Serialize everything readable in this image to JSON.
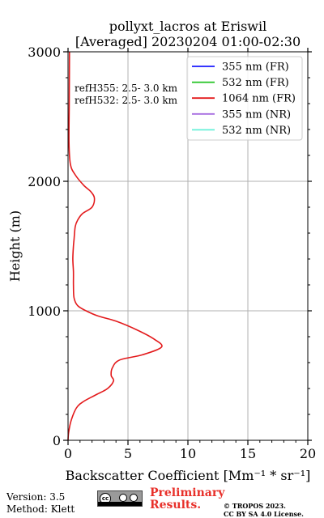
{
  "chart_data": {
    "type": "line",
    "title": [
      "pollyxt_lacros at Eriswil",
      "[Averaged] 20230204 01:00-02:30"
    ],
    "xlabel": "Backscatter Coefficient [Mm⁻¹ * sr⁻¹]",
    "ylabel": "Height (m)",
    "xlim": [
      0,
      20
    ],
    "ylim": [
      0,
      3000
    ],
    "xticks": [
      0,
      5,
      10,
      15,
      20
    ],
    "xtick_labels": [
      "0",
      "5",
      "10",
      "15",
      "20"
    ],
    "yticks": [
      0,
      1000,
      2000,
      3000
    ],
    "ytick_labels": [
      "0",
      "1000",
      "2000",
      "3000"
    ],
    "grid": true,
    "legend_position": "top-right",
    "legend": [
      {
        "name": "355 nm (FR)",
        "color": "#1a1aff"
      },
      {
        "name": "532 nm (FR)",
        "color": "#22c322"
      },
      {
        "name": "1064 nm (FR)",
        "color": "#e31a1c"
      },
      {
        "name": "355 nm (NR)",
        "color": "#a66be0"
      },
      {
        "name": "532 nm (NR)",
        "color": "#66f0d8"
      }
    ],
    "annotations": [
      "refH355:  2.5- 3.0 km",
      "refH532:  2.5- 3.0 km"
    ],
    "series": [
      {
        "name": "1064 nm (FR)",
        "color": "#e31a1c",
        "x": [
          0.0,
          0.05,
          0.25,
          0.7,
          1.3,
          2.3,
          3.3,
          3.8,
          3.6,
          3.7,
          4.3,
          6.2,
          7.8,
          7.2,
          5.8,
          4.0,
          2.5,
          1.5,
          0.8,
          0.5,
          0.45,
          0.45,
          0.4,
          0.45,
          0.5,
          0.6,
          0.8,
          1.2,
          2.0,
          2.2,
          1.9,
          1.3,
          0.6,
          0.2,
          0.08,
          0.1,
          0.12
        ],
        "y": [
          0,
          60,
          150,
          250,
          300,
          350,
          400,
          460,
          500,
          560,
          620,
          660,
          720,
          780,
          850,
          920,
          960,
          1000,
          1040,
          1100,
          1200,
          1300,
          1400,
          1500,
          1550,
          1650,
          1700,
          1750,
          1800,
          1870,
          1920,
          1970,
          2050,
          2130,
          2300,
          2600,
          3000
        ]
      }
    ]
  },
  "footer": {
    "version": "Version: 3.5",
    "method": "Method: Klett",
    "preliminary_1": "Preliminary",
    "preliminary_2": "Results.",
    "tropos_1": "© TROPOS 2023.",
    "tropos_2": "CC BY SA 4.0 License.",
    "cc_badge_text": "cc"
  },
  "colors": {
    "axis": "#000000",
    "grid": "#b0b0b0",
    "preliminary": "#e8302a"
  }
}
